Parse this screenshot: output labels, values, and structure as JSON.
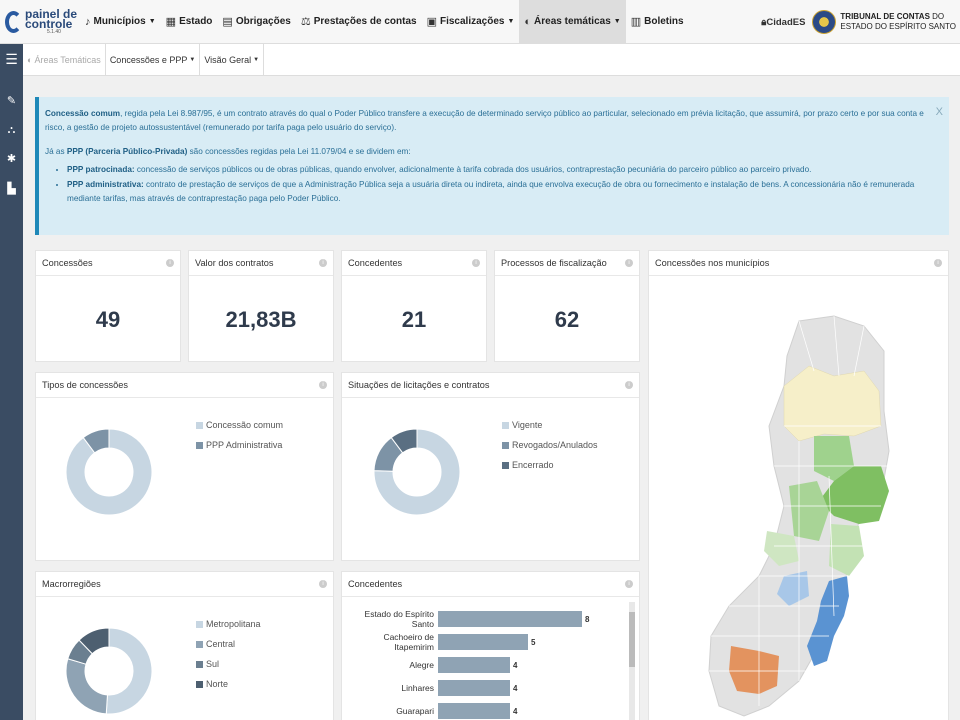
{
  "app": {
    "logo_line1": "painel de",
    "logo_line2": "controle",
    "version": "5.1.40"
  },
  "nav": [
    {
      "label": "Municípios",
      "icon": "city-icon",
      "dropdown": true
    },
    {
      "label": "Estado",
      "icon": "building-icon",
      "dropdown": false
    },
    {
      "label": "Obrigações",
      "icon": "clipboard-icon",
      "dropdown": false
    },
    {
      "label": "Prestações de contas",
      "icon": "scale-icon",
      "dropdown": false
    },
    {
      "label": "Fiscalizações",
      "icon": "report-icon",
      "dropdown": true
    },
    {
      "label": "Áreas temáticas",
      "icon": "layers-icon",
      "dropdown": true,
      "active": true
    },
    {
      "label": "Boletins",
      "icon": "newspaper-icon",
      "dropdown": false
    }
  ],
  "topright": {
    "cidades": "CidadES",
    "tce_bold": "TRIBUNAL DE CONTAS",
    "tce_rest": "DO",
    "tce_line2": "ESTADO DO ESPÍRITO SANTO"
  },
  "breadcrumb": {
    "root": "Áreas Temáticas",
    "level1": "Concessões e PPP",
    "level2": "Visão Geral"
  },
  "alert": {
    "p1_bold": "Concessão comum",
    "p1_text": ", regida pela Lei 8.987/95, é um contrato através do qual o Poder Público transfere a execução de determinado serviço público ao particular, selecionado em prévia licitação, que assumirá, por prazo certo e por sua conta e risco, a gestão de projeto autossustentável (remunerado por tarifa paga pelo usuário do serviço).",
    "p2_pre": "Já as ",
    "p2_bold": "PPP (Parceria Público-Privada)",
    "p2_text": " são concessões regidas pela Lei 11.079/04 e se dividem em:",
    "li1_bold": "PPP patrocinada:",
    "li1_text": " concessão de serviços públicos ou de obras públicas, quando envolver, adicionalmente à tarifa cobrada dos usuários, contraprestação pecuniária do parceiro público ao parceiro privado.",
    "li2_bold": "PPP administrativa:",
    "li2_text": " contrato de prestação de serviços de que a Administração Pública seja a usuária direta ou indireta, ainda que envolva execução de obra ou fornecimento e instalação de bens. A concessionária não é remunerada mediante tarifas, mas através de contraprestação paga pelo Poder Público.",
    "close": "X"
  },
  "kpis": [
    {
      "title": "Concessões",
      "value": "49"
    },
    {
      "title": "Valor dos contratos",
      "value": "21,83B"
    },
    {
      "title": "Concedentes",
      "value": "21"
    },
    {
      "title": "Processos de fiscalização",
      "value": "62"
    }
  ],
  "map_panel": {
    "title": "Concessões nos municípios"
  },
  "tipos": {
    "title": "Tipos de concessões",
    "legend": [
      {
        "label": "Concessão comum",
        "color": "#c7d6e2"
      },
      {
        "label": "PPP Administrativa",
        "color": "#7d93a6"
      }
    ]
  },
  "situacoes": {
    "title": "Situações de licitações e contratos",
    "legend": [
      {
        "label": "Vigente",
        "color": "#c7d6e2"
      },
      {
        "label": "Revogados/Anulados",
        "color": "#7d93a6"
      },
      {
        "label": "Encerrado",
        "color": "#5a6f82"
      }
    ]
  },
  "macro": {
    "title": "Macrorregiões",
    "legend": [
      {
        "label": "Metropolitana",
        "color": "#c7d6e2"
      },
      {
        "label": "Central",
        "color": "#8fa3b4"
      },
      {
        "label": "Sul",
        "color": "#6b7f90"
      },
      {
        "label": "Norte",
        "color": "#4d5f70"
      }
    ]
  },
  "concedentes_panel": {
    "title": "Concedentes"
  },
  "chart_data": [
    {
      "type": "pie",
      "title": "Tipos de concessões",
      "categories": [
        "Concessão comum",
        "PPP Administrativa"
      ],
      "values": [
        44,
        5
      ],
      "donut": true
    },
    {
      "type": "pie",
      "title": "Situações de licitações e contratos",
      "categories": [
        "Vigente",
        "Revogados/Anulados",
        "Encerrado"
      ],
      "values": [
        37,
        7,
        5
      ],
      "donut": true
    },
    {
      "type": "pie",
      "title": "Macrorregiões",
      "categories": [
        "Metropolitana",
        "Central",
        "Sul",
        "Norte"
      ],
      "values": [
        25,
        14,
        4,
        6
      ],
      "donut": true
    },
    {
      "type": "bar",
      "title": "Concedentes",
      "orientation": "horizontal",
      "categories": [
        "Estado do Espírito Santo",
        "Cachoeiro de Itapemirim",
        "Alegre",
        "Linhares",
        "Guarapari"
      ],
      "values": [
        8,
        5,
        4,
        4,
        4
      ],
      "xlim": [
        0,
        8
      ]
    }
  ]
}
